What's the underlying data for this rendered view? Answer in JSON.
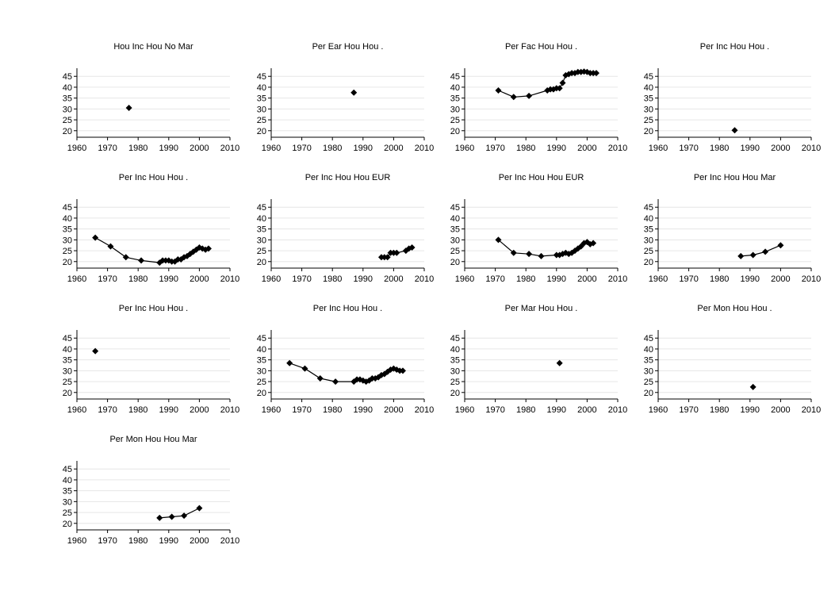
{
  "chart_data": {
    "type": "line",
    "layout": "small-multiples",
    "xlim": [
      1960,
      2010
    ],
    "xticks": [
      1960,
      1970,
      1980,
      1990,
      2000,
      2010
    ],
    "ylim": [
      17,
      48
    ],
    "yticks": [
      20,
      25,
      30,
      35,
      40,
      45
    ],
    "grid": true,
    "panels": [
      {
        "title": "Hou Inc Hou No Mar",
        "x": [
          1977
        ],
        "y": [
          30.5
        ]
      },
      {
        "title": "Per Ear Hou Hou .",
        "x": [
          1987
        ],
        "y": [
          37.5
        ]
      },
      {
        "title": "Per Fac Hou Hou .",
        "x": [
          1971,
          1976,
          1981,
          1987,
          1988,
          1989,
          1990,
          1991,
          1992,
          1993,
          1994,
          1995,
          1996,
          1997,
          1998,
          1999,
          2000,
          2001,
          2002,
          2003
        ],
        "y": [
          38.5,
          35.5,
          36,
          38.5,
          39,
          39,
          39.5,
          39.5,
          42,
          45.5,
          46,
          46.5,
          46.5,
          47,
          47,
          47.2,
          47,
          46.5,
          46.5,
          46.5
        ]
      },
      {
        "title": "Per Inc Hou Hou .",
        "x": [
          1985
        ],
        "y": [
          20.2
        ]
      },
      {
        "title": "Per Inc Hou Hou .",
        "x": [
          1966,
          1971,
          1976,
          1981,
          1987,
          1988,
          1989,
          1990,
          1991,
          1992,
          1993,
          1994,
          1995,
          1996,
          1997,
          1998,
          1999,
          2000,
          2001,
          2002,
          2003
        ],
        "y": [
          31,
          27,
          22,
          20.5,
          19.5,
          20.5,
          20.5,
          20.5,
          20,
          20,
          21,
          21,
          22,
          22.5,
          23.5,
          24.5,
          25.5,
          26.5,
          26,
          25.5,
          26
        ]
      },
      {
        "title": "Per Inc Hou Hou EUR",
        "x": [
          1996,
          1997,
          1998,
          1999,
          2000,
          2001,
          2004,
          2005,
          2006
        ],
        "y": [
          22,
          22,
          22,
          24,
          24,
          24,
          25,
          26,
          26.5
        ]
      },
      {
        "title": "Per Inc Hou Hou EUR",
        "x": [
          1971,
          1976,
          1981,
          1985,
          1990,
          1991,
          1992,
          1993,
          1994,
          1995,
          1996,
          1997,
          1998,
          1999,
          2000,
          2001,
          2002
        ],
        "y": [
          30,
          24,
          23.5,
          22.5,
          23,
          23,
          23.5,
          24,
          23.5,
          24,
          25,
          26,
          27,
          28.5,
          29,
          28,
          28.5
        ]
      },
      {
        "title": "Per Inc Hou Hou Mar",
        "x": [
          1987,
          1991,
          1995,
          2000
        ],
        "y": [
          22.5,
          23,
          24.5,
          27.5
        ]
      },
      {
        "title": "Per Inc Hou Hou .",
        "x": [
          1966
        ],
        "y": [
          39
        ]
      },
      {
        "title": "Per Inc Hou Hou .",
        "x": [
          1966,
          1971,
          1976,
          1981,
          1987,
          1988,
          1989,
          1990,
          1991,
          1992,
          1993,
          1994,
          1995,
          1996,
          1997,
          1998,
          1999,
          2000,
          2001,
          2002,
          2003
        ],
        "y": [
          33.5,
          31,
          26.5,
          25,
          25,
          26,
          26,
          25.5,
          25,
          25.5,
          26.5,
          26.5,
          27,
          28,
          28.5,
          29.5,
          30.5,
          31,
          30.5,
          30,
          30
        ]
      },
      {
        "title": "Per Mar Hou Hou .",
        "x": [
          1991
        ],
        "y": [
          33.5
        ]
      },
      {
        "title": "Per Mon Hou Hou .",
        "x": [
          1991
        ],
        "y": [
          22.5
        ]
      },
      {
        "title": "Per Mon Hou Hou Mar",
        "x": [
          1987,
          1991,
          1995,
          2000
        ],
        "y": [
          22.5,
          23,
          23.5,
          27
        ]
      }
    ]
  }
}
